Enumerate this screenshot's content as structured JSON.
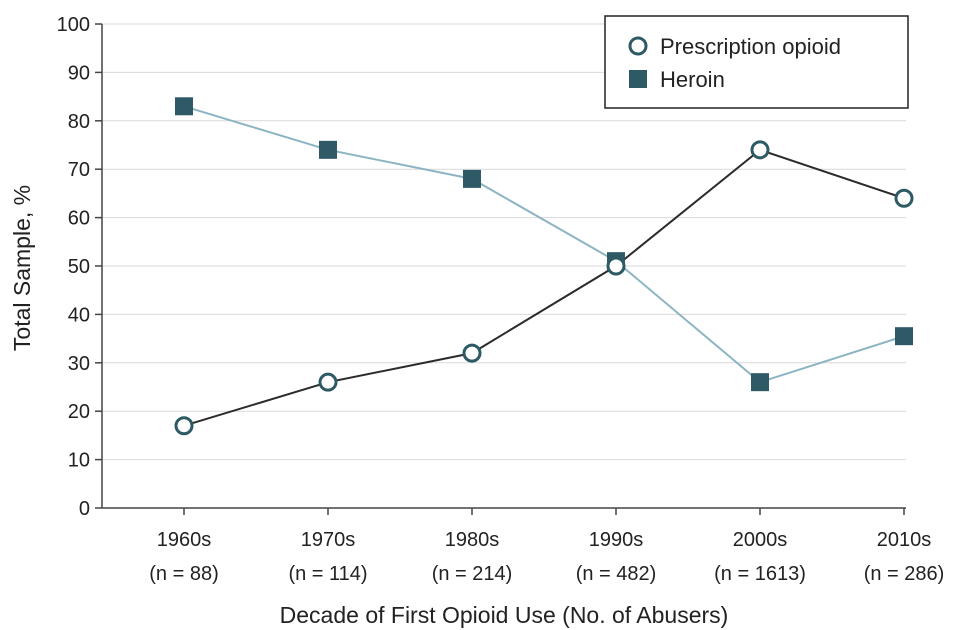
{
  "chart_data": {
    "type": "line",
    "xlabel": "Decade of First Opioid Use (No. of Abusers)",
    "ylabel": "Total Sample, %",
    "ylim": [
      0,
      100
    ],
    "yticks": [
      "0",
      "10",
      "20",
      "30",
      "40",
      "50",
      "60",
      "70",
      "80",
      "90",
      "100"
    ],
    "grid": "horizontal",
    "legend_position": "top-right",
    "categories": [
      {
        "decade": "1960s",
        "n": "(n = 88)"
      },
      {
        "decade": "1970s",
        "n": "(n = 114)"
      },
      {
        "decade": "1980s",
        "n": "(n = 214)"
      },
      {
        "decade": "1990s",
        "n": "(n = 482)"
      },
      {
        "decade": "2000s",
        "n": "(n = 1613)"
      },
      {
        "decade": "2010s",
        "n": "(n = 286)"
      }
    ],
    "series": [
      {
        "name": "Prescription opioid",
        "marker": "open-circle",
        "line_color": "#2b2b2b",
        "marker_color": "#2e5a66",
        "values": [
          17,
          26,
          32,
          50,
          74,
          64
        ]
      },
      {
        "name": "Heroin",
        "marker": "filled-square",
        "line_color": "#8db4c3",
        "marker_color": "#2e5a66",
        "values": [
          83,
          74,
          68,
          51,
          26,
          35.5
        ]
      }
    ]
  }
}
